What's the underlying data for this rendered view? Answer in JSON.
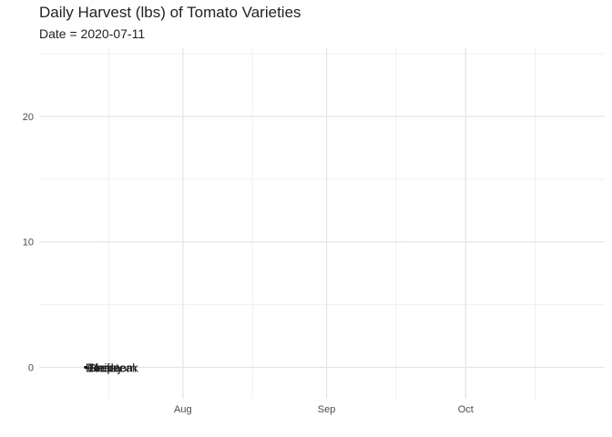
{
  "chart_data": {
    "type": "line",
    "title": "Daily Harvest (lbs) of Tomato Varieties",
    "subtitle": "Date = 2020-07-11",
    "xlabel": "",
    "ylabel": "",
    "x_ticks": [
      "2020-08-01",
      "2020-09-01",
      "2020-10-01"
    ],
    "x_tick_labels": [
      "Aug",
      "Sep",
      "Oct"
    ],
    "xlim": [
      "2020-07-01",
      "2020-10-31"
    ],
    "y_ticks": [
      0,
      10,
      20
    ],
    "ylim": [
      0,
      25
    ],
    "grid": true,
    "legend": "none",
    "series": [
      {
        "label": "Roma",
        "x": [
          "2020-07-11"
        ],
        "values": [
          0
        ],
        "color": "#000000"
      },
      {
        "label": "Cherry",
        "x": [
          "2020-07-11"
        ],
        "values": [
          0
        ],
        "color": "#000000"
      },
      {
        "label": "Heirloom",
        "x": [
          "2020-07-11"
        ],
        "values": [
          0
        ],
        "color": "#000000"
      },
      {
        "label": "Beefsteak",
        "x": [
          "2020-07-11"
        ],
        "values": [
          0
        ],
        "color": "#000000"
      },
      {
        "label": "Grape",
        "x": [
          "2020-07-11"
        ],
        "values": [
          0
        ],
        "color": "#000000"
      }
    ]
  }
}
